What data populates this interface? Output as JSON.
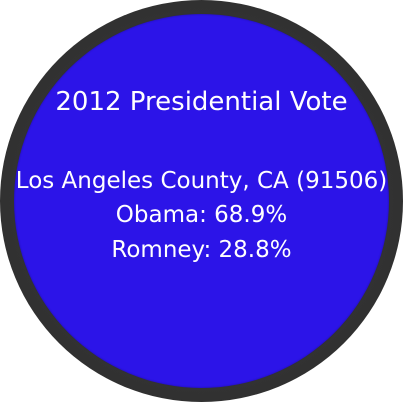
{
  "face": {
    "title": "2012 Presidential Vote",
    "location": "Los Angeles County, CA (91506)",
    "obama": "Obama: 68.9%",
    "romney": "Romney: 28.8%"
  },
  "colors": {
    "face_background": "#2c14e8",
    "bezel": "#333333",
    "text": "#ffffff"
  }
}
